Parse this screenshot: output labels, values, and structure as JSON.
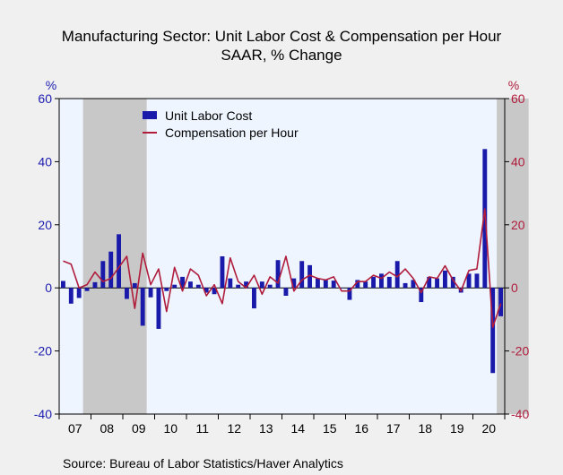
{
  "chart_data": {
    "type": "bar+line",
    "title": "Manufacturing Sector: Unit Labor Cost & Compensation per Hour",
    "subtitle": "SAAR, % Change",
    "left_unit": "%",
    "right_unit": "%",
    "ylim": [
      -40,
      60
    ],
    "yticks": [
      -40,
      -20,
      0,
      20,
      40,
      60
    ],
    "year_labels": [
      "07",
      "08",
      "09",
      "10",
      "11",
      "12",
      "13",
      "14",
      "15",
      "16",
      "17",
      "18",
      "19",
      "20"
    ],
    "recessions": [
      [
        3,
        10
      ],
      [
        55,
        58
      ]
    ],
    "source": "Source:  Bureau of Labor Statistics/Haver Analytics",
    "series": [
      {
        "name": "Unit Labor Cost",
        "type": "bar",
        "color": "#1a1aaa",
        "values": [
          2.2,
          -5,
          -3.2,
          -1,
          1.8,
          8.5,
          11.5,
          17,
          -3.5,
          1.5,
          -12,
          -3,
          -13,
          -1,
          1,
          3.5,
          2,
          1,
          -1.5,
          -2,
          10,
          3,
          1,
          2,
          -6.5,
          2,
          1,
          8.8,
          -2.5,
          3,
          8.5,
          7.2,
          3,
          2.5,
          2.3,
          0,
          -3.8,
          2.5,
          2,
          3.5,
          4.5,
          3.5,
          8.5,
          1.5,
          2.5,
          -4.5,
          3.5,
          3,
          5.5,
          3.5,
          -1.5,
          4.5,
          4.5,
          44,
          -27,
          -9
        ]
      },
      {
        "name": "Compensation per Hour",
        "type": "line",
        "color": "#b01c3c",
        "values": [
          8.5,
          7.5,
          0,
          1,
          5,
          2,
          3,
          6.5,
          10,
          -6.5,
          11,
          1,
          6,
          -7.5,
          6.5,
          -1,
          6,
          4,
          -2.5,
          1,
          -5,
          9.5,
          2,
          0,
          4,
          -2,
          3.5,
          1.5,
          10,
          -1,
          2.5,
          4,
          3,
          2.5,
          3.5,
          -1,
          -1,
          2,
          2,
          4,
          3,
          5,
          3.5,
          6,
          3,
          -1.5,
          3.5,
          3,
          7,
          2.5,
          -1,
          5.5,
          6,
          25,
          -12.5,
          -5
        ]
      }
    ]
  }
}
